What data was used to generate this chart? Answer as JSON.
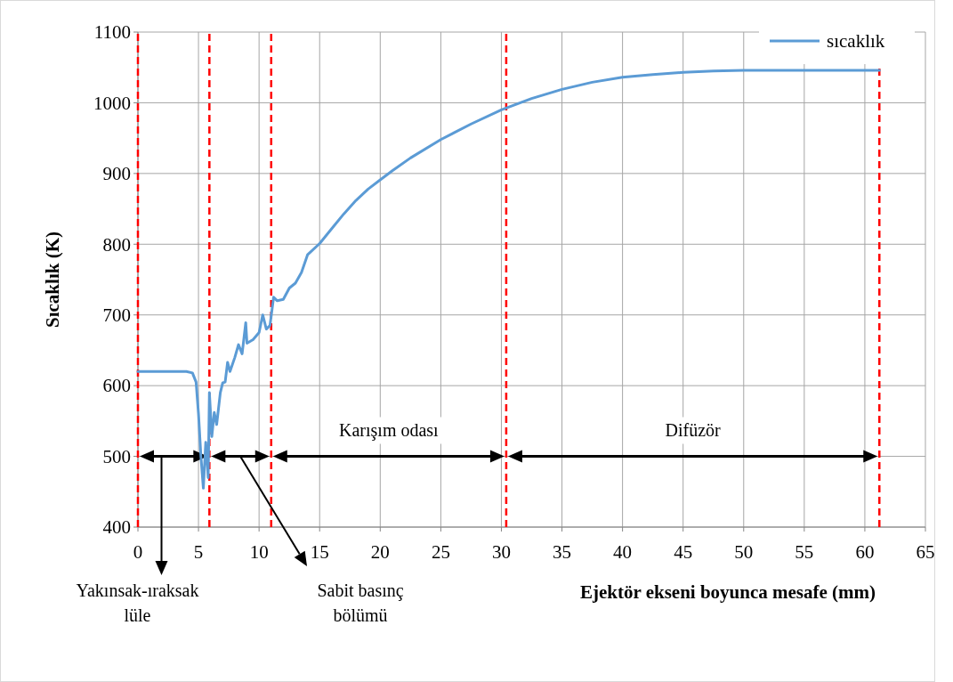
{
  "chart_data": {
    "type": "line",
    "xlabel": "Ejektör ekseni boyunca mesafe (mm)",
    "ylabel": "Sıcaklık (K)",
    "xlim": [
      0,
      65
    ],
    "xticks": [
      0,
      5,
      10,
      15,
      20,
      25,
      30,
      35,
      40,
      45,
      50,
      55,
      60,
      65
    ],
    "ylim": [
      400,
      1100
    ],
    "yticks": [
      400,
      500,
      600,
      700,
      800,
      900,
      1000,
      1100
    ],
    "grid": true,
    "legend": "top right",
    "marker": "none",
    "line_style": "solid",
    "series": [
      {
        "name": "sıcaklık",
        "color": "#5b9bd5",
        "x": [
          0,
          2,
          4,
          4.5,
          4.8,
          5.0,
          5.2,
          5.4,
          5.6,
          5.8,
          5.9,
          6.1,
          6.3,
          6.5,
          6.8,
          7.0,
          7.2,
          7.4,
          7.6,
          8.0,
          8.3,
          8.6,
          8.9,
          9.0,
          9.5,
          10.0,
          10.3,
          10.6,
          10.9,
          11.2,
          11.5,
          12.0,
          12.5,
          13.0,
          13.5,
          14.0,
          15.0,
          16.0,
          17.0,
          18.0,
          19.0,
          20.0,
          21.0,
          22.5,
          25.0,
          27.5,
          30.0,
          32.5,
          35.0,
          37.5,
          40.0,
          42.5,
          45.0,
          47.5,
          50.0,
          55.0,
          61.2
        ],
        "values": [
          620,
          620,
          620,
          618,
          605,
          560,
          500,
          455,
          520,
          470,
          590,
          528,
          562,
          545,
          590,
          604,
          605,
          633,
          620,
          640,
          658,
          645,
          689,
          660,
          665,
          675,
          700,
          680,
          685,
          725,
          720,
          722,
          738,
          745,
          760,
          785,
          801,
          822,
          843,
          862,
          878,
          891,
          904,
          922,
          948,
          970,
          990,
          1006,
          1019,
          1029,
          1036,
          1040,
          1043,
          1045,
          1046,
          1046,
          1046
        ]
      }
    ],
    "ref_lines": [
      {
        "axis": "x",
        "value": 0,
        "color": "#ff0000",
        "line_style": "dashed"
      },
      {
        "axis": "x",
        "value": 5.9,
        "color": "#ff0000",
        "line_style": "dashed"
      },
      {
        "axis": "x",
        "value": 11,
        "color": "#ff0000",
        "line_style": "dashed"
      },
      {
        "axis": "x",
        "value": 30.4,
        "color": "#ff0000",
        "line_style": "dashed"
      },
      {
        "axis": "x",
        "value": 61.2,
        "color": "#ff0000",
        "line_style": "dashed"
      }
    ],
    "annotations": [
      "Yakınsak-ıraksak lüle",
      "Sabit basınç bölümü",
      "Karışım odası",
      "Difüzör"
    ]
  }
}
